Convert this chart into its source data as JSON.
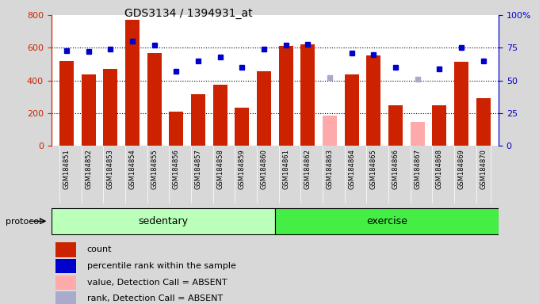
{
  "title": "GDS3134 / 1394931_at",
  "samples": [
    "GSM184851",
    "GSM184852",
    "GSM184853",
    "GSM184854",
    "GSM184855",
    "GSM184856",
    "GSM184857",
    "GSM184858",
    "GSM184859",
    "GSM184860",
    "GSM184861",
    "GSM184862",
    "GSM184863",
    "GSM184864",
    "GSM184865",
    "GSM184866",
    "GSM184867",
    "GSM184868",
    "GSM184869",
    "GSM184870"
  ],
  "count_values": [
    520,
    440,
    470,
    770,
    570,
    210,
    315,
    375,
    235,
    455,
    610,
    620,
    185,
    440,
    555,
    250,
    148,
    248,
    515,
    290
  ],
  "absent_flags": [
    false,
    false,
    false,
    false,
    false,
    false,
    false,
    false,
    false,
    false,
    false,
    false,
    true,
    false,
    false,
    false,
    true,
    false,
    false,
    false
  ],
  "percentile_values": [
    73,
    72,
    74,
    80,
    77,
    57,
    65,
    68,
    60,
    74,
    77,
    78,
    52,
    71,
    70,
    60,
    51,
    59,
    75,
    65
  ],
  "absent_rank_flags": [
    false,
    false,
    false,
    false,
    false,
    false,
    false,
    false,
    false,
    false,
    false,
    false,
    true,
    false,
    false,
    false,
    true,
    false,
    false,
    false
  ],
  "sedentary_count": 10,
  "exercise_count": 10,
  "protocol_label": "protocol",
  "sedentary_label": "sedentary",
  "exercise_label": "exercise",
  "left_ylim": [
    0,
    800
  ],
  "left_yticks": [
    0,
    200,
    400,
    600,
    800
  ],
  "right_ylim": [
    0,
    100
  ],
  "right_yticks": [
    0,
    25,
    50,
    75,
    100
  ],
  "right_yticklabels": [
    "0",
    "25",
    "50",
    "75",
    "100%"
  ],
  "bar_color_present": "#cc2200",
  "bar_color_absent": "#ffaaaa",
  "dot_color_present": "#0000cc",
  "dot_color_absent": "#aaaacc",
  "bg_color": "#d8d8d8",
  "plot_bg": "#ffffff",
  "xtick_bg": "#cccccc",
  "sedentary_bg": "#bbffbb",
  "exercise_bg": "#44ee44",
  "legend_items": [
    {
      "label": "count",
      "color": "#cc2200"
    },
    {
      "label": "percentile rank within the sample",
      "color": "#0000cc"
    },
    {
      "label": "value, Detection Call = ABSENT",
      "color": "#ffaaaa"
    },
    {
      "label": "rank, Detection Call = ABSENT",
      "color": "#aaaacc"
    }
  ]
}
